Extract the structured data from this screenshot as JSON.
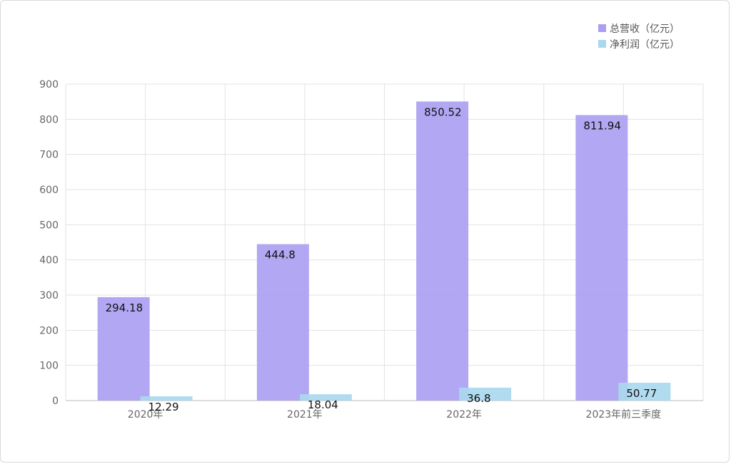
{
  "chart_data": {
    "type": "bar",
    "categories": [
      "2020年",
      "2021年",
      "2022年",
      "2023年前三季度"
    ],
    "series": [
      {
        "name": "总营收（亿元）",
        "values": [
          294.18,
          444.8,
          850.52,
          811.94
        ],
        "color": "#ab9ff2"
      },
      {
        "name": "净利润（亿元）",
        "values": [
          12.29,
          18.04,
          36.8,
          50.77
        ],
        "color": "#aad8ee"
      }
    ],
    "value_labels": [
      [
        "294.18",
        "444.8",
        "850.52",
        "811.94"
      ],
      [
        "12.29",
        "18.04",
        "36.8",
        "50.77"
      ]
    ],
    "ylim": [
      0,
      900
    ],
    "yticks": [
      0,
      100,
      200,
      300,
      400,
      500,
      600,
      700,
      800,
      900
    ],
    "grid": true,
    "legend_position": "top-right",
    "xlabel": "",
    "ylabel": "",
    "title": ""
  }
}
